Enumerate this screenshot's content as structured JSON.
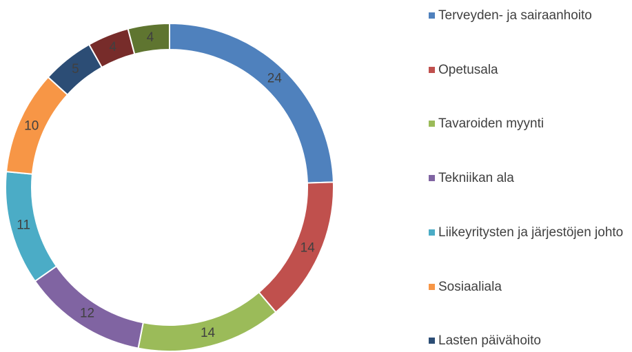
{
  "chart_data": {
    "type": "donut",
    "categories": [
      "Terveyden- ja sairaanhoito",
      "Opetusala",
      "Tavaroiden myynti",
      "Tekniikan ala",
      "Liikeyritysten ja järjestöjen johto",
      "Sosiaaliala",
      "Lasten päivähoito",
      null,
      null
    ],
    "values": [
      24,
      14,
      14,
      12,
      11,
      10,
      5,
      4,
      4
    ],
    "colors": [
      "#4f81bd",
      "#c0504d",
      "#9bbb59",
      "#8064a2",
      "#4bacc6",
      "#f79646",
      "#2c4d75",
      "#772c2a",
      "#5f7530"
    ],
    "legend": "right"
  }
}
